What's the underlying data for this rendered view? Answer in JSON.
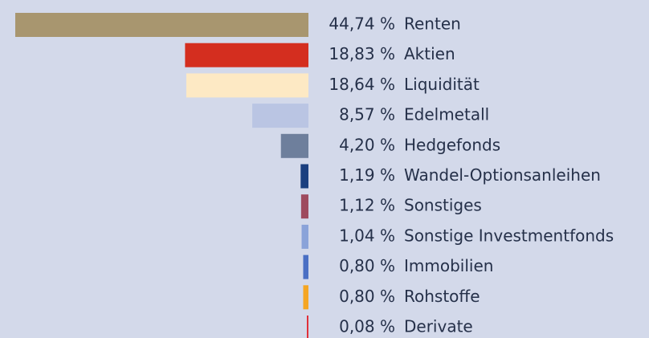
{
  "chart_data": {
    "type": "bar",
    "orientation": "horizontal",
    "categories": [
      "Renten",
      "Aktien",
      "Liquidität",
      "Edelmetall",
      "Hedgefonds",
      "Wandel-Optionsanleihen",
      "Sonstiges",
      "Sonstige Investmentfonds",
      "Immobilien",
      "Rohstoffe",
      "Derivate"
    ],
    "values": [
      44.74,
      18.83,
      18.64,
      8.57,
      4.2,
      1.19,
      1.12,
      1.04,
      0.8,
      0.8,
      0.08
    ],
    "value_labels": [
      "44,74 %",
      "18,83 %",
      "18,64 %",
      "8,57 %",
      "4,20 %",
      "1,19 %",
      "1,12 %",
      "1,04 %",
      "0,80 %",
      "0,80 %",
      "0,08 %"
    ],
    "colors": [
      "#a8966f",
      "#d42e1f",
      "#fde9c4",
      "#bac5e3",
      "#6e7f9c",
      "#1a3f7f",
      "#9e4a5e",
      "#8aa3d9",
      "#4a6fc4",
      "#f5a623",
      "#e0303a"
    ]
  }
}
